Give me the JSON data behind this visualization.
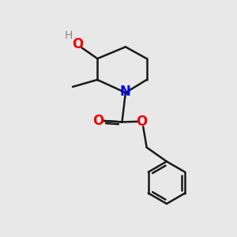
{
  "bg_color": "#e8e8e8",
  "bond_color": "#1a1a1a",
  "N_color": "#0000ee",
  "O_color": "#ee0000",
  "H_color": "#888888",
  "lw": 1.8,
  "fs": 11,
  "xlim": [
    0,
    10
  ],
  "ylim": [
    0,
    10
  ]
}
